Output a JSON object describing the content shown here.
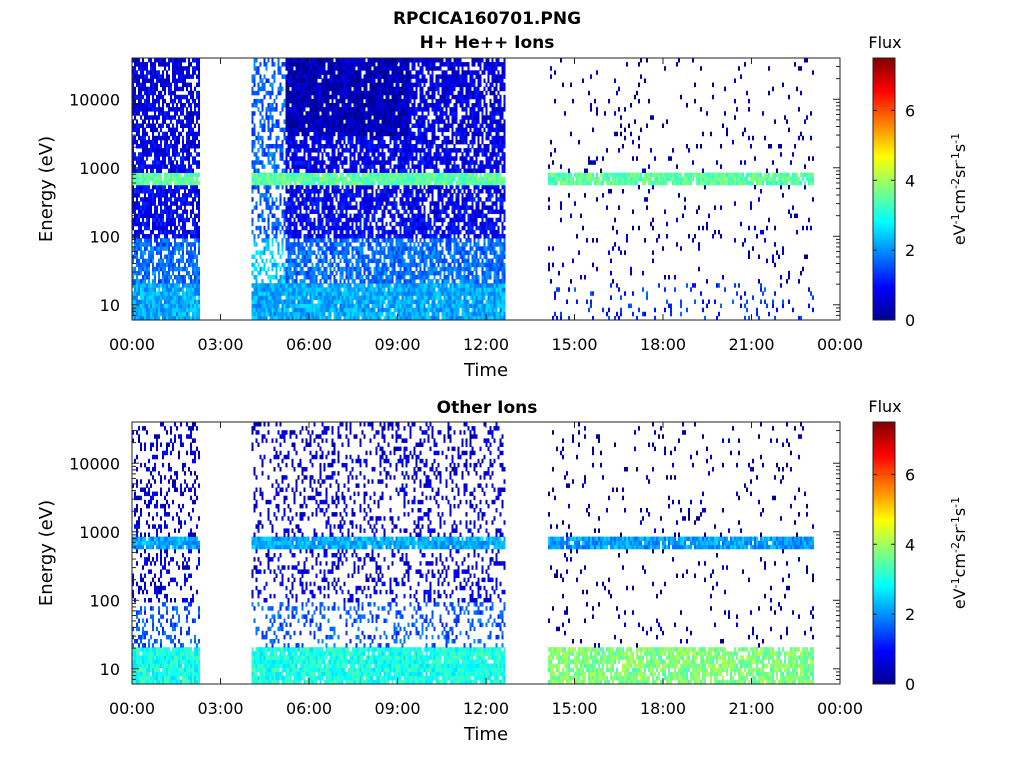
{
  "figure": {
    "title_line1": "RPCICA160701.PNG",
    "title_line2": "H+ He++ Ions"
  },
  "colorbar": {
    "label": "Flux",
    "unit_parts": [
      {
        "t": "eV"
      },
      {
        "t": "-1",
        "sup": true
      },
      {
        "t": "cm"
      },
      {
        "t": "-2",
        "sup": true
      },
      {
        "t": "sr"
      },
      {
        "t": "-1",
        "sup": true
      },
      {
        "t": "s"
      },
      {
        "t": "-1",
        "sup": true
      }
    ],
    "ticks": [
      "0",
      "2",
      "4",
      "6"
    ],
    "range": [
      0,
      7.5
    ],
    "colormap": "jet"
  },
  "chart_data": [
    {
      "type": "heatmap",
      "title": "",
      "xlabel": "Time",
      "ylabel": "Energy (eV)",
      "x_ticks": [
        "00:00",
        "03:00",
        "06:00",
        "09:00",
        "12:00",
        "15:00",
        "18:00",
        "21:00",
        "00:00"
      ],
      "x_tick_hours": [
        0,
        3,
        6,
        9,
        12,
        15,
        18,
        21,
        24
      ],
      "xlim_hours": [
        0,
        24
      ],
      "y_scale": "log",
      "y_ticks": [
        "10",
        "100",
        "1000",
        "10000"
      ],
      "y_tick_values": [
        10,
        100,
        1000,
        10000
      ],
      "ylim": [
        6,
        40000
      ],
      "grid": false,
      "data_intervals_hours": [
        [
          0,
          2.25
        ],
        [
          4.05,
          12.6
        ],
        [
          14.1,
          23.1
        ]
      ],
      "features": {
        "band_energy_eV": 700,
        "band_level": 3.5,
        "low_energy_level": 2.2,
        "background_level": 1.0
      }
    },
    {
      "type": "heatmap",
      "title": "Other Ions",
      "xlabel": "Time",
      "ylabel": "Energy (eV)",
      "x_ticks": [
        "00:00",
        "03:00",
        "06:00",
        "09:00",
        "12:00",
        "15:00",
        "18:00",
        "21:00",
        "00:00"
      ],
      "x_tick_hours": [
        0,
        3,
        6,
        9,
        12,
        15,
        18,
        21,
        24
      ],
      "xlim_hours": [
        0,
        24
      ],
      "y_scale": "log",
      "y_ticks": [
        "10",
        "100",
        "1000",
        "10000"
      ],
      "y_tick_values": [
        10,
        100,
        1000,
        10000
      ],
      "ylim": [
        6,
        40000
      ],
      "grid": false,
      "data_intervals_hours": [
        [
          0,
          2.25
        ],
        [
          4.05,
          12.6
        ],
        [
          14.1,
          23.1
        ]
      ],
      "features": {
        "band_energy_eV": 720,
        "band_level": 2.2,
        "low_energy_level": 3.0,
        "background_level": 0.8
      }
    }
  ]
}
